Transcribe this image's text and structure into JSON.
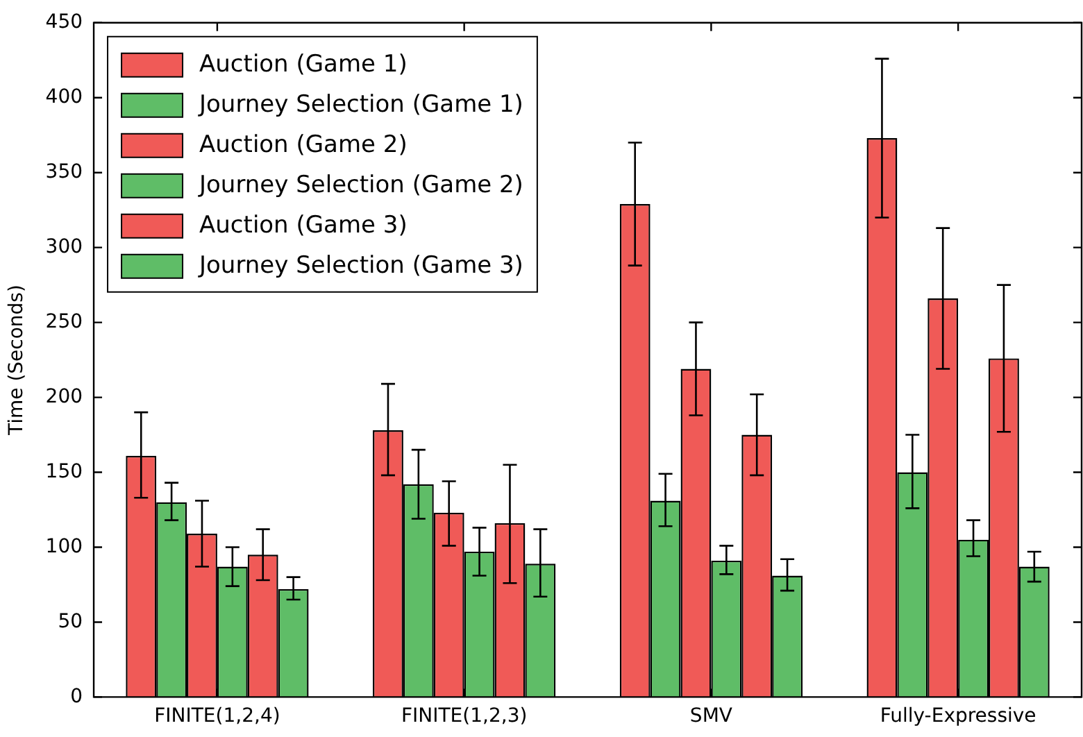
{
  "chart_data": {
    "type": "bar",
    "ylabel": "Time (Seconds)",
    "categories": [
      "FINITE(1,2,4)",
      "FINITE(1,2,3)",
      "SMV",
      "Fully-Expressive"
    ],
    "series": [
      {
        "name": "Auction (Game 1)",
        "color": "#f05a57",
        "values": [
          161,
          178,
          329,
          373
        ],
        "errors": [
          [
            133,
            190
          ],
          [
            148,
            209
          ],
          [
            288,
            370
          ],
          [
            320,
            426
          ]
        ]
      },
      {
        "name": "Journey Selection (Game 1)",
        "color": "#5fbd67",
        "values": [
          130,
          142,
          131,
          150
        ],
        "errors": [
          [
            118,
            143
          ],
          [
            119,
            165
          ],
          [
            114,
            149
          ],
          [
            126,
            175
          ]
        ]
      },
      {
        "name": "Auction (Game 2)",
        "color": "#f05a57",
        "values": [
          109,
          123,
          219,
          266
        ],
        "errors": [
          [
            87,
            131
          ],
          [
            101,
            144
          ],
          [
            188,
            250
          ],
          [
            219,
            313
          ]
        ]
      },
      {
        "name": "Journey Selection (Game 2)",
        "color": "#5fbd67",
        "values": [
          87,
          97,
          91,
          105
        ],
        "errors": [
          [
            74,
            100
          ],
          [
            81,
            113
          ],
          [
            82,
            101
          ],
          [
            94,
            118
          ]
        ]
      },
      {
        "name": "Auction (Game 3)",
        "color": "#f05a57",
        "values": [
          95,
          116,
          175,
          226
        ],
        "errors": [
          [
            78,
            112
          ],
          [
            76,
            155
          ],
          [
            148,
            202
          ],
          [
            177,
            275
          ]
        ]
      },
      {
        "name": "Journey Selection (Game 3)",
        "color": "#5fbd67",
        "values": [
          72,
          89,
          81,
          87
        ],
        "errors": [
          [
            65,
            80
          ],
          [
            67,
            112
          ],
          [
            71,
            92
          ],
          [
            77,
            97
          ]
        ]
      }
    ],
    "ylim": [
      0,
      450
    ],
    "yticks": [
      0,
      50,
      100,
      150,
      200,
      250,
      300,
      350,
      400,
      450
    ],
    "grid": false,
    "legend": "top left"
  }
}
